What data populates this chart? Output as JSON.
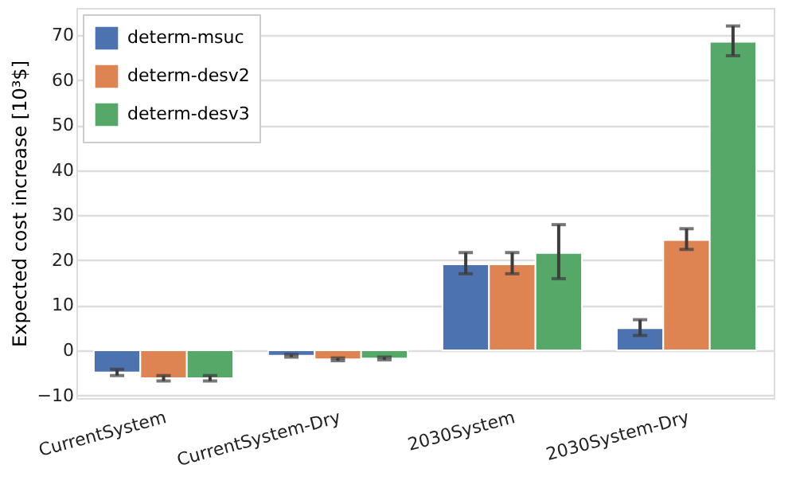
{
  "chart_data": {
    "type": "bar",
    "ylabel": "Expected cost increase [10³$]",
    "categories": [
      "CurrentSystem",
      "CurrentSystem-Dry",
      "2030System",
      "2030System-Dry"
    ],
    "series": [
      {
        "name": "determ-msuc",
        "color": "#4c72b0",
        "values": [
          -4.9,
          -1.2,
          19.1,
          4.9
        ],
        "errors": [
          [
            -5.6,
            -4.2
          ],
          [
            -1.5,
            -0.9
          ],
          [
            17.0,
            21.7
          ],
          [
            3.3,
            6.8
          ]
        ]
      },
      {
        "name": "determ-desv2",
        "color": "#dd8452",
        "values": [
          -6.2,
          -2.0,
          19.1,
          24.5
        ],
        "errors": [
          [
            -6.8,
            -5.6
          ],
          [
            -2.3,
            -1.7
          ],
          [
            17.0,
            21.7
          ],
          [
            22.4,
            27.0
          ]
        ]
      },
      {
        "name": "determ-desv3",
        "color": "#55a868",
        "values": [
          -6.2,
          -1.8,
          21.6,
          68.5
        ],
        "errors": [
          [
            -6.8,
            -5.6
          ],
          [
            -2.1,
            -1.5
          ],
          [
            15.9,
            27.9
          ],
          [
            65.4,
            72.0
          ]
        ]
      }
    ],
    "ylim": [
      -10.6,
      76
    ],
    "yticks": [
      -10,
      0,
      10,
      20,
      30,
      40,
      50,
      60,
      70
    ],
    "grid": "y",
    "legend": "top left"
  }
}
